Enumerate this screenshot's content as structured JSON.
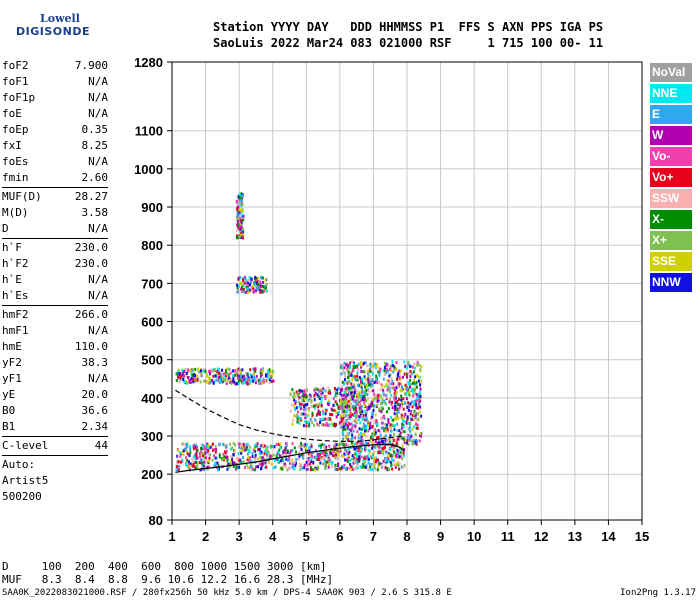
{
  "logo": {
    "line1": "Lowell",
    "line2": "DIGISONDE"
  },
  "header": {
    "line1": "Station YYYY DAY   DDD HHMMSS P1  FFS S AXN PPS IGA PS",
    "line2": "SaoLuis 2022 Mar24 083 021000 RSF     1 715 100 00- 11"
  },
  "params": [
    [
      {
        "name": "foF2",
        "value": "7.900"
      },
      {
        "name": "foF1",
        "value": "N/A"
      },
      {
        "name": "foF1p",
        "value": "N/A"
      },
      {
        "name": "foE",
        "value": "N/A"
      },
      {
        "name": "foEp",
        "value": "0.35"
      },
      {
        "name": "fxI",
        "value": "8.25"
      },
      {
        "name": "foEs",
        "value": "N/A"
      },
      {
        "name": "fmin",
        "value": "2.60"
      }
    ],
    [
      {
        "name": "MUF(D)",
        "value": "28.27"
      },
      {
        "name": "M(D)",
        "value": "3.58"
      },
      {
        "name": "D",
        "value": "N/A"
      }
    ],
    [
      {
        "name": "h`F",
        "value": "230.0"
      },
      {
        "name": "h`F2",
        "value": "230.0"
      },
      {
        "name": "h`E",
        "value": "N/A"
      },
      {
        "name": "h`Es",
        "value": "N/A"
      }
    ],
    [
      {
        "name": "hmF2",
        "value": "266.0"
      },
      {
        "name": "hmF1",
        "value": "N/A"
      },
      {
        "name": "hmE",
        "value": "110.0"
      },
      {
        "name": "yF2",
        "value": "38.3"
      },
      {
        "name": "yF1",
        "value": "N/A"
      },
      {
        "name": "yE",
        "value": "20.0"
      },
      {
        "name": "B0",
        "value": "36.6"
      },
      {
        "name": "B1",
        "value": "2.34"
      }
    ],
    [
      {
        "name": "C-level",
        "value": "44"
      }
    ]
  ],
  "auto": {
    "line1": "Auto:",
    "line2": "Artist5",
    "line3": "500200"
  },
  "legend": [
    {
      "label": "NoVal",
      "color": "#a0a0a0"
    },
    {
      "label": "NNE",
      "color": "#00e8f0"
    },
    {
      "label": "E",
      "color": "#30a8f0"
    },
    {
      "label": "W",
      "color": "#b000b0"
    },
    {
      "label": "Vo-",
      "color": "#f040b0"
    },
    {
      "label": "Vo+",
      "color": "#e8001c"
    },
    {
      "label": "SSW",
      "color": "#f8b0b0"
    },
    {
      "label": "X-",
      "color": "#008c00"
    },
    {
      "label": "X+",
      "color": "#80c050"
    },
    {
      "label": "SSE",
      "color": "#d0d000"
    },
    {
      "label": "NNW",
      "color": "#1010e0"
    }
  ],
  "bottom": {
    "line1": "D     100  200  400  600  800 1000 1500 3000 [km]",
    "line2": "MUF   8.3  8.4  8.8  9.6 10.6 12.2 16.6 28.3 [MHz]"
  },
  "footer": "SAA0K_2022083021000.RSF / 280fx256h 50 kHz 5.0 km / DPS-4 SAA0K 903 / 2.6 S 315.8 E",
  "version": "Ion2Png 1.3.17",
  "chart_data": {
    "type": "scatter",
    "x_ticks": [
      1,
      2,
      3,
      4,
      5,
      6,
      7,
      8,
      9,
      10,
      11,
      12,
      13,
      14,
      15
    ],
    "y_ticks": [
      80,
      200,
      300,
      400,
      500,
      600,
      700,
      800,
      900,
      1000,
      1100,
      1280
    ],
    "xlim": [
      1,
      15
    ],
    "ylim": [
      80,
      1280
    ],
    "grid": true,
    "traces": [
      {
        "x": [
          1.1,
          1.5,
          2.0,
          2.5,
          3.0,
          3.5,
          4.0,
          4.5,
          5.0,
          5.5,
          6.0,
          6.5,
          7.0,
          7.5,
          7.8,
          7.9
        ],
        "y": [
          205,
          210,
          215,
          220,
          226,
          232,
          240,
          248,
          256,
          262,
          268,
          273,
          277,
          278,
          270,
          262
        ],
        "style": "solid"
      },
      {
        "x": [
          1.1,
          1.5,
          2.0,
          2.5,
          3.0,
          3.5,
          4.0,
          4.5,
          5.0,
          5.5,
          6.0,
          6.5,
          7.0,
          7.5,
          7.9
        ],
        "y": [
          420,
          398,
          372,
          350,
          330,
          316,
          306,
          298,
          292,
          288,
          286,
          286,
          290,
          296,
          300
        ],
        "style": "dashed"
      }
    ],
    "echo_regions": [
      {
        "x": [
          1.1,
          7.9
        ],
        "y": [
          215,
          285
        ],
        "density": "high"
      },
      {
        "x": [
          1.1,
          4.0
        ],
        "y": [
          440,
          480
        ],
        "density": "medium"
      },
      {
        "x": [
          2.9,
          3.8
        ],
        "y": [
          680,
          720
        ],
        "density": "low"
      },
      {
        "x": [
          6.0,
          8.4
        ],
        "y": [
          280,
          500
        ],
        "density": "high"
      },
      {
        "x": [
          2.9,
          3.1
        ],
        "y": [
          820,
          940
        ],
        "density": "low"
      },
      {
        "x": [
          4.5,
          6.5
        ],
        "y": [
          330,
          430
        ],
        "density": "medium"
      }
    ]
  }
}
